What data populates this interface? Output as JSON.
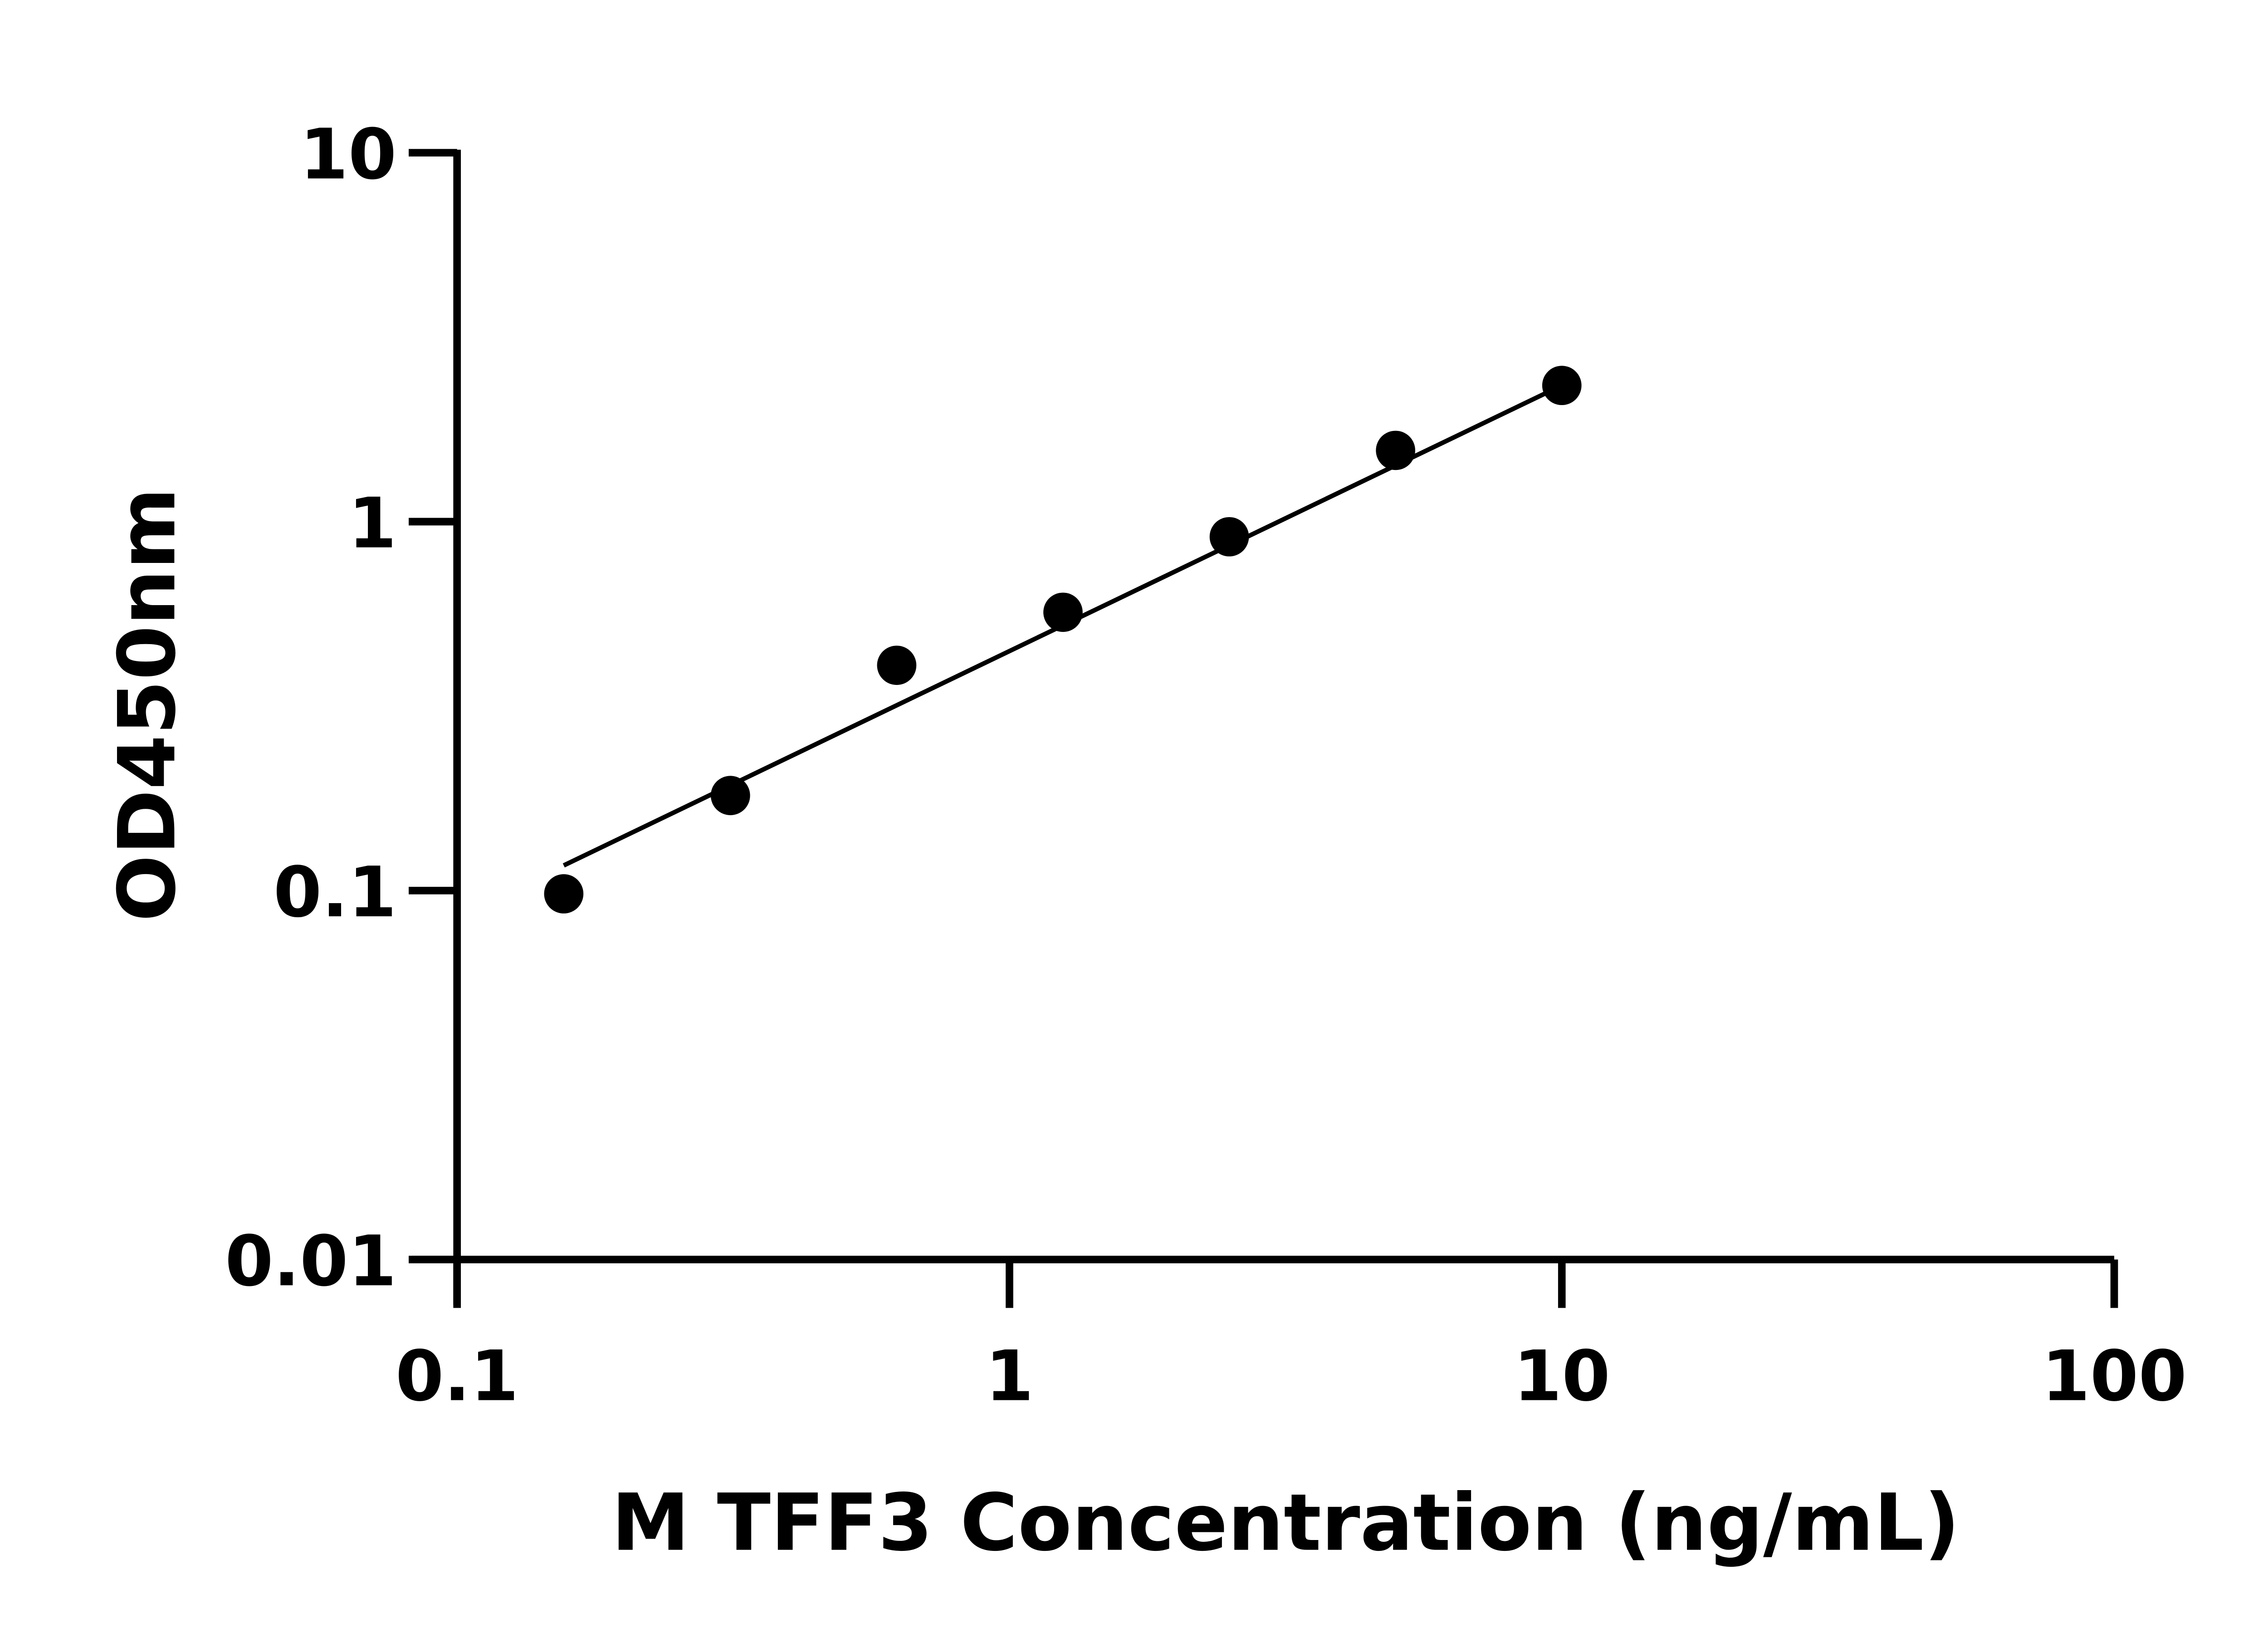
{
  "chart_data": {
    "type": "scatter",
    "title": "",
    "xlabel": "M TFF3 Concentration (ng/mL)",
    "ylabel": "OD450nm",
    "x_scale": "log",
    "y_scale": "log",
    "xlim": [
      0.1,
      100
    ],
    "ylim": [
      0.01,
      10
    ],
    "x_ticks": [
      "0.1",
      "1",
      "10",
      "100"
    ],
    "y_ticks": [
      "0.01",
      "0.1",
      "1",
      "10"
    ],
    "grid": false,
    "legend": "none",
    "series": [
      {
        "x": [
          0.156,
          0.3125,
          0.625,
          1.25,
          2.5,
          5,
          10
        ],
        "y": [
          0.098,
          0.181,
          0.408,
          0.568,
          0.91,
          1.56,
          2.34
        ],
        "color": "#000000"
      }
    ],
    "fit_line": {
      "x": [
        0.156,
        10
      ],
      "y": [
        0.117,
        2.34
      ],
      "color": "#000000"
    }
  }
}
